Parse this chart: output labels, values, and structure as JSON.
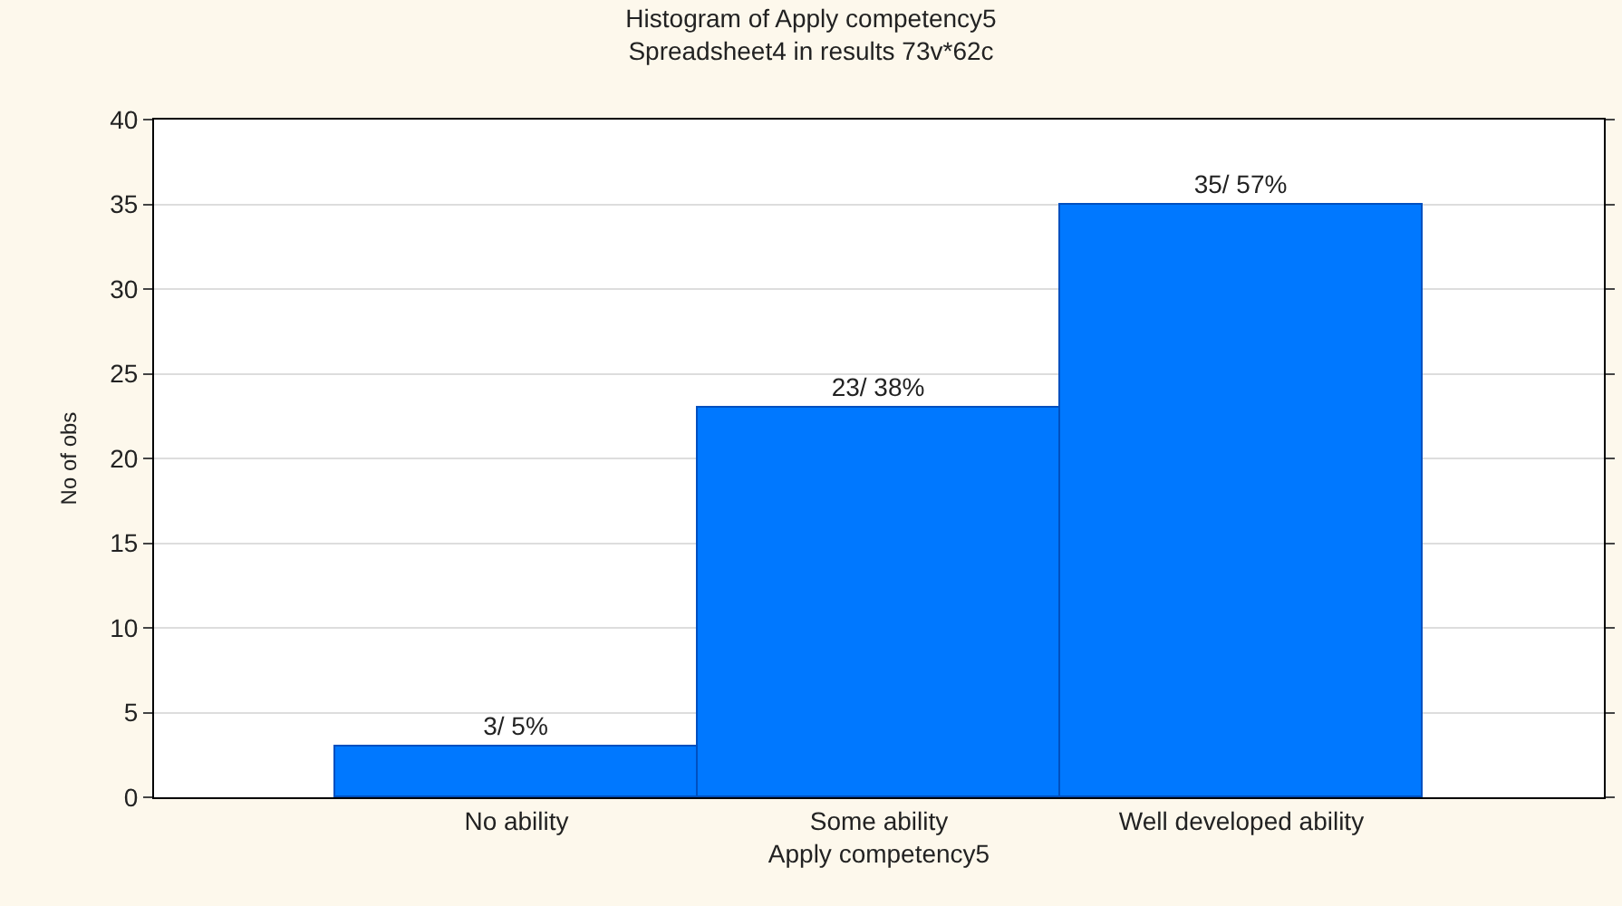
{
  "chart_data": {
    "type": "bar",
    "title": "Histogram of Apply competency5",
    "subtitle": "Spreadsheet4 in results 73v*62c",
    "xlabel": "Apply competency5",
    "ylabel": "No of obs",
    "categories": [
      "No ability",
      "Some ability",
      "Well developed ability"
    ],
    "values": [
      3,
      23,
      35
    ],
    "color": "#0078ff",
    "value_labels": [
      "3/ 5%",
      "23/ 38%",
      "35/ 57%"
    ],
    "ylim": [
      0,
      40
    ],
    "yticks": [
      0,
      5,
      10,
      15,
      20,
      25,
      30,
      35,
      40
    ],
    "grid": "y"
  }
}
